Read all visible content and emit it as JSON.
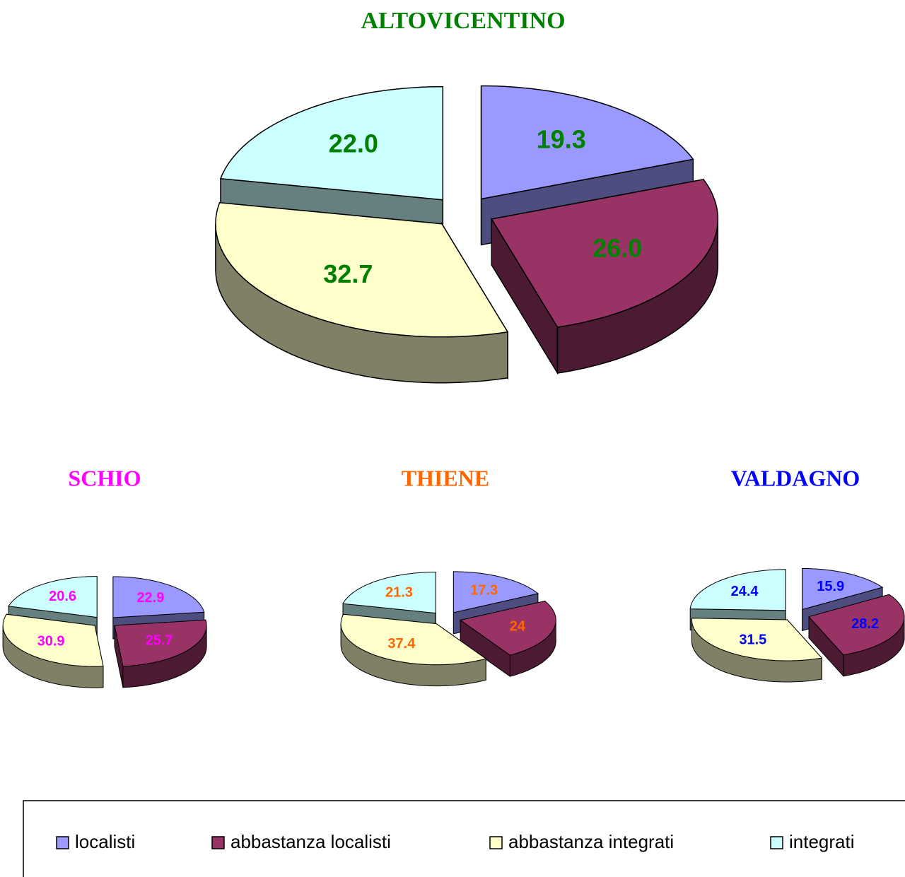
{
  "chart_data": [
    {
      "type": "pie",
      "title": "ALTOVICENTINO",
      "title_color": "#008000",
      "label_color": "#008000",
      "categories": [
        "localisti",
        "abbastanza localisti",
        "abbastanza integrati",
        "integrati"
      ],
      "colors": [
        "#9999ff",
        "#993366",
        "#ffffcc",
        "#ccffff"
      ],
      "values": [
        19.3,
        26,
        32.7,
        22
      ],
      "value_labels": [
        "19.3",
        "26.0",
        "32.7",
        "22.0"
      ]
    },
    {
      "type": "pie",
      "title": "SCHIO",
      "title_color": "#ff00ff",
      "label_color": "#ff00ff",
      "categories": [
        "localisti",
        "abbastanza localisti",
        "abbastanza integrati",
        "integrati"
      ],
      "colors": [
        "#9999ff",
        "#993366",
        "#ffffcc",
        "#ccffff"
      ],
      "values": [
        22.9,
        25.7,
        30.9,
        20.6
      ]
    },
    {
      "type": "pie",
      "title": "THIENE",
      "title_color": "#ff6600",
      "label_color": "#ff6600",
      "categories": [
        "localisti",
        "abbastanza localisti",
        "abbastanza integrati",
        "integrati"
      ],
      "colors": [
        "#9999ff",
        "#993366",
        "#ffffcc",
        "#ccffff"
      ],
      "values": [
        17.3,
        24,
        37.4,
        21.3
      ]
    },
    {
      "type": "pie",
      "title": "VALDAGNO",
      "title_color": "#0000ff",
      "label_color": "#0000ff",
      "categories": [
        "localisti",
        "abbastanza localisti",
        "abbastanza integrati",
        "integrati"
      ],
      "colors": [
        "#9999ff",
        "#993366",
        "#ffffcc",
        "#ccffff"
      ],
      "values": [
        15.9,
        28.2,
        31.5,
        24.4
      ]
    }
  ]
}
